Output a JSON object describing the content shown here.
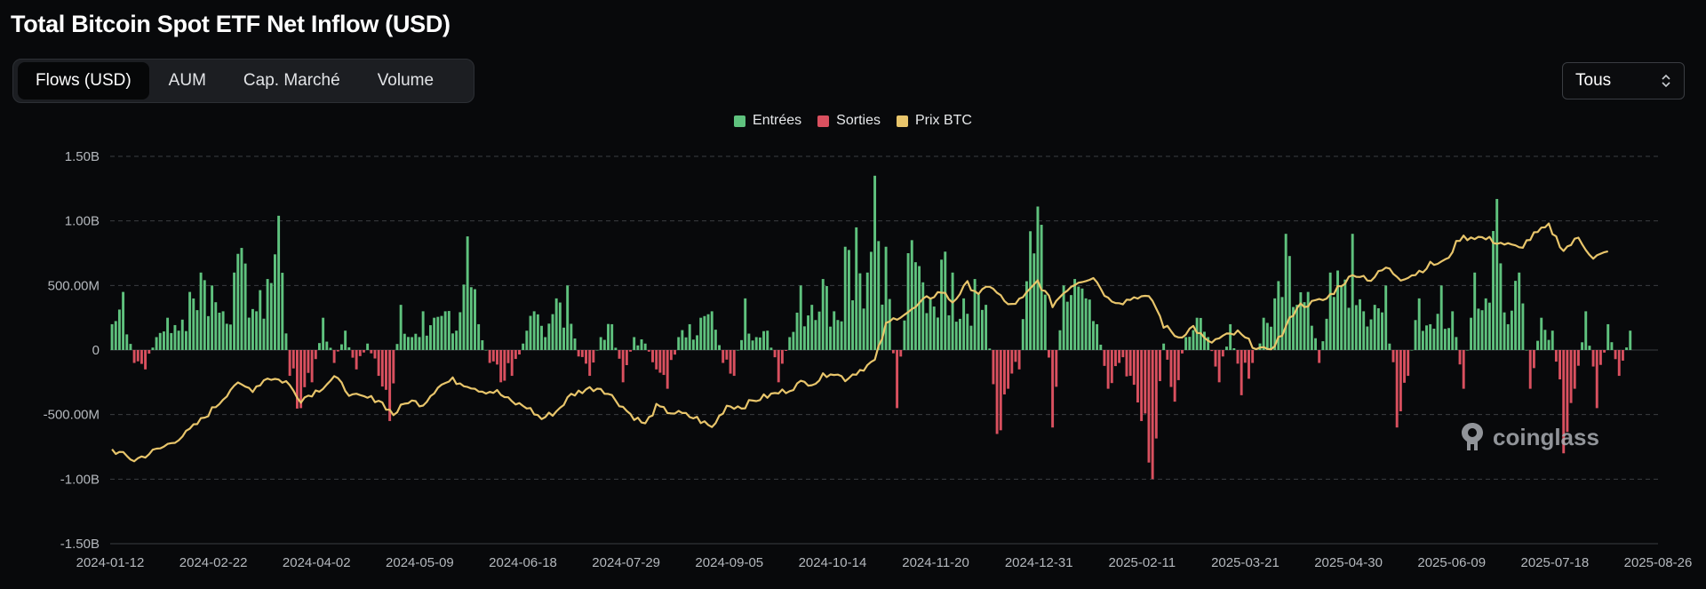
{
  "header": {
    "title": "Total Bitcoin Spot ETF Net Inflow (USD)"
  },
  "tabs": [
    {
      "label": "Flows (USD)",
      "active": true
    },
    {
      "label": "AUM",
      "active": false
    },
    {
      "label": "Cap. Marché",
      "active": false
    },
    {
      "label": "Volume",
      "active": false
    }
  ],
  "range_select": {
    "value": "Tous",
    "icon": "up-down-chevron-icon"
  },
  "watermark": {
    "text": "coinglass",
    "icon": "coinglass-logo-icon"
  },
  "colors": {
    "inflow": "#5fc27e",
    "outflow": "#d9505f",
    "price": "#e8c56b",
    "grid": "#3a3d42",
    "background": "#08090b"
  },
  "chart_data": {
    "type": "bar",
    "title": "Total Bitcoin Spot ETF Net Inflow (USD)",
    "legend": [
      "Entrées",
      "Sorties",
      "Prix BTC"
    ],
    "legend_placement": "top-center",
    "y_ticks": [
      "1.50B",
      "1.00B",
      "500.00M",
      "0",
      "-500.00M",
      "-1.00B",
      "-1.50B"
    ],
    "ylim": [
      -1500000000,
      1500000000
    ],
    "x_ticks": [
      "2024-01-12",
      "2024-02-22",
      "2024-04-02",
      "2024-05-09",
      "2024-06-18",
      "2024-07-29",
      "2024-09-05",
      "2024-10-14",
      "2024-11-20",
      "2024-12-31",
      "2025-02-11",
      "2025-03-21",
      "2025-04-30",
      "2025-06-09",
      "2025-07-18",
      "2025-08-26"
    ],
    "grid": true,
    "x_period": [
      "2024-01-12",
      "2025-08-26"
    ],
    "flow_anchors_usd": [
      [
        0,
        200000000.0
      ],
      [
        3,
        450000000.0
      ],
      [
        6,
        -100000000.0
      ],
      [
        9,
        -150000000.0
      ],
      [
        12,
        100000000.0
      ],
      [
        15,
        250000000.0
      ],
      [
        18,
        150000000.0
      ],
      [
        21,
        450000000.0
      ],
      [
        24,
        600000000.0
      ],
      [
        27,
        500000000.0
      ],
      [
        30,
        300000000.0
      ],
      [
        33,
        600000000.0
      ],
      [
        36,
        670000000.0
      ],
      [
        39,
        300000000.0
      ],
      [
        42,
        550000000.0
      ],
      [
        45,
        1040000000.0
      ],
      [
        48,
        -200000000.0
      ],
      [
        51,
        -450000000.0
      ],
      [
        54,
        -250000000.0
      ],
      [
        57,
        250000000.0
      ],
      [
        60,
        -100000000.0
      ],
      [
        63,
        150000000.0
      ],
      [
        66,
        -150000000.0
      ],
      [
        69,
        50000000.0
      ],
      [
        72,
        -200000000.0
      ],
      [
        75,
        -550000000.0
      ],
      [
        78,
        350000000.0
      ],
      [
        81,
        100000000.0
      ],
      [
        84,
        300000000.0
      ],
      [
        87,
        250000000.0
      ],
      [
        90,
        300000000.0
      ],
      [
        93,
        150000000.0
      ],
      [
        96,
        880000000.0
      ],
      [
        99,
        200000000.0
      ],
      [
        102,
        -100000000.0
      ],
      [
        105,
        -250000000.0
      ],
      [
        108,
        -200000000.0
      ],
      [
        111,
        50000000.0
      ],
      [
        114,
        300000000.0
      ],
      [
        117,
        100000000.0
      ],
      [
        120,
        400000000.0
      ],
      [
        123,
        500000000.0
      ],
      [
        126,
        -50000000.0
      ],
      [
        129,
        -200000000.0
      ],
      [
        132,
        100000000.0
      ],
      [
        135,
        200000000.0
      ],
      [
        138,
        -250000000.0
      ],
      [
        141,
        100000000.0
      ],
      [
        144,
        50000000.0
      ],
      [
        147,
        -150000000.0
      ],
      [
        150,
        -300000000.0
      ],
      [
        153,
        100000000.0
      ],
      [
        156,
        200000000.0
      ],
      [
        159,
        250000000.0
      ],
      [
        162,
        300000000.0
      ],
      [
        165,
        -100000000.0
      ],
      [
        168,
        -200000000.0
      ],
      [
        171,
        400000000.0
      ],
      [
        174,
        100000000.0
      ],
      [
        177,
        150000000.0
      ],
      [
        180,
        -250000000.0
      ],
      [
        183,
        100000000.0
      ],
      [
        186,
        500000000.0
      ],
      [
        189,
        350000000.0
      ],
      [
        192,
        550000000.0
      ],
      [
        195,
        300000000.0
      ],
      [
        198,
        800000000.0
      ],
      [
        201,
        950000000.0
      ],
      [
        204,
        600000000.0
      ],
      [
        206,
        1350000000.0
      ],
      [
        209,
        800000000.0
      ],
      [
        212,
        -450000000.0
      ],
      [
        215,
        750000000.0
      ],
      [
        218,
        650000000.0
      ],
      [
        221,
        400000000.0
      ],
      [
        224,
        700000000.0
      ],
      [
        227,
        600000000.0
      ],
      [
        230,
        400000000.0
      ],
      [
        233,
        550000000.0
      ],
      [
        236,
        350000000.0
      ],
      [
        239,
        -650000000.0
      ],
      [
        242,
        -300000000.0
      ],
      [
        245,
        -150000000.0
      ],
      [
        248,
        920000000.0
      ],
      [
        251,
        970000000.0
      ],
      [
        254,
        -600000000.0
      ],
      [
        257,
        500000000.0
      ],
      [
        260,
        550000000.0
      ],
      [
        263,
        400000000.0
      ],
      [
        266,
        200000000.0
      ],
      [
        269,
        -300000000.0
      ],
      [
        272,
        -100000000.0
      ],
      [
        275,
        -200000000.0
      ],
      [
        278,
        -550000000.0
      ],
      [
        281,
        -1000000000.0
      ],
      [
        284,
        50000000.0
      ],
      [
        287,
        -400000000.0
      ],
      [
        290,
        100000000.0
      ],
      [
        293,
        250000000.0
      ],
      [
        296,
        100000000.0
      ],
      [
        299,
        -250000000.0
      ],
      [
        302,
        200000000.0
      ],
      [
        305,
        -350000000.0
      ],
      [
        308,
        -100000000.0
      ],
      [
        311,
        250000000.0
      ],
      [
        314,
        400000000.0
      ],
      [
        317,
        900000000.0
      ],
      [
        320,
        350000000.0
      ],
      [
        323,
        450000000.0
      ],
      [
        326,
        -100000000.0
      ],
      [
        329,
        600000000.0
      ],
      [
        332,
        500000000.0
      ],
      [
        335,
        900000000.0
      ],
      [
        338,
        300000000.0
      ],
      [
        341,
        350000000.0
      ],
      [
        344,
        500000000.0
      ],
      [
        347,
        -600000000.0
      ],
      [
        350,
        -200000000.0
      ],
      [
        353,
        400000000.0
      ],
      [
        356,
        200000000.0
      ],
      [
        359,
        500000000.0
      ],
      [
        362,
        300000000.0
      ],
      [
        365,
        -300000000.0
      ],
      [
        368,
        600000000.0
      ],
      [
        371,
        400000000.0
      ],
      [
        374,
        1170000000.0
      ],
      [
        377,
        200000000.0
      ],
      [
        380,
        600000000.0
      ],
      [
        383,
        -300000000.0
      ],
      [
        386,
        250000000.0
      ],
      [
        389,
        150000000.0
      ],
      [
        392,
        -800000000.0
      ],
      [
        395,
        -300000000.0
      ],
      [
        398,
        300000000.0
      ],
      [
        401,
        -450000000.0
      ],
      [
        404,
        200000000.0
      ],
      [
        407,
        -200000000.0
      ],
      [
        410,
        150000000.0
      ]
    ],
    "price_anchors_usd": [
      [
        0,
        46000
      ],
      [
        6,
        42500
      ],
      [
        14,
        47000
      ],
      [
        20,
        51500
      ],
      [
        25,
        57000
      ],
      [
        29,
        62000
      ],
      [
        33,
        68000
      ],
      [
        38,
        66500
      ],
      [
        42,
        70500
      ],
      [
        47,
        69000
      ],
      [
        51,
        63000
      ],
      [
        56,
        66500
      ],
      [
        60,
        70500
      ],
      [
        65,
        64000
      ],
      [
        72,
        63000
      ],
      [
        76,
        58000
      ],
      [
        80,
        62500
      ],
      [
        84,
        61500
      ],
      [
        88,
        67500
      ],
      [
        92,
        69500
      ],
      [
        96,
        68000
      ],
      [
        100,
        66000
      ],
      [
        104,
        65500
      ],
      [
        108,
        62000
      ],
      [
        112,
        60500
      ],
      [
        116,
        56500
      ],
      [
        120,
        59000
      ],
      [
        124,
        64500
      ],
      [
        128,
        66500
      ],
      [
        132,
        67000
      ],
      [
        136,
        63000
      ],
      [
        140,
        58000
      ],
      [
        144,
        54500
      ],
      [
        147,
        60500
      ],
      [
        150,
        59000
      ],
      [
        154,
        58000
      ],
      [
        158,
        56500
      ],
      [
        162,
        53500
      ],
      [
        166,
        61000
      ],
      [
        170,
        60500
      ],
      [
        174,
        63000
      ],
      [
        178,
        64500
      ],
      [
        182,
        66000
      ],
      [
        186,
        68500
      ],
      [
        190,
        69000
      ],
      [
        194,
        72500
      ],
      [
        198,
        70000
      ],
      [
        202,
        73000
      ],
      [
        206,
        76000
      ],
      [
        209,
        88000
      ],
      [
        212,
        91000
      ],
      [
        216,
        93000
      ],
      [
        220,
        97000
      ],
      [
        224,
        99500
      ],
      [
        227,
        96000
      ],
      [
        231,
        102000
      ],
      [
        234,
        99000
      ],
      [
        238,
        101000
      ],
      [
        242,
        94500
      ],
      [
        246,
        97000
      ],
      [
        250,
        103000
      ],
      [
        254,
        95000
      ],
      [
        258,
        100500
      ],
      [
        261,
        103000
      ],
      [
        265,
        104500
      ],
      [
        269,
        97000
      ],
      [
        273,
        96000
      ],
      [
        277,
        98000
      ],
      [
        281,
        96500
      ],
      [
        284,
        88000
      ],
      [
        288,
        84000
      ],
      [
        292,
        87500
      ],
      [
        296,
        82000
      ],
      [
        300,
        84000
      ],
      [
        304,
        85500
      ],
      [
        308,
        81500
      ],
      [
        312,
        79000
      ],
      [
        316,
        85000
      ],
      [
        320,
        94500
      ],
      [
        324,
        95500
      ],
      [
        328,
        97000
      ],
      [
        332,
        102000
      ],
      [
        336,
        105500
      ],
      [
        340,
        103500
      ],
      [
        344,
        107500
      ],
      [
        348,
        104000
      ],
      [
        352,
        105500
      ],
      [
        356,
        108500
      ],
      [
        360,
        109500
      ],
      [
        364,
        117500
      ],
      [
        368,
        118000
      ],
      [
        372,
        117000
      ],
      [
        376,
        115500
      ],
      [
        380,
        114000
      ],
      [
        384,
        118500
      ],
      [
        388,
        121500
      ],
      [
        392,
        113500
      ],
      [
        396,
        117500
      ],
      [
        400,
        111000
      ],
      [
        404,
        112500
      ]
    ]
  }
}
